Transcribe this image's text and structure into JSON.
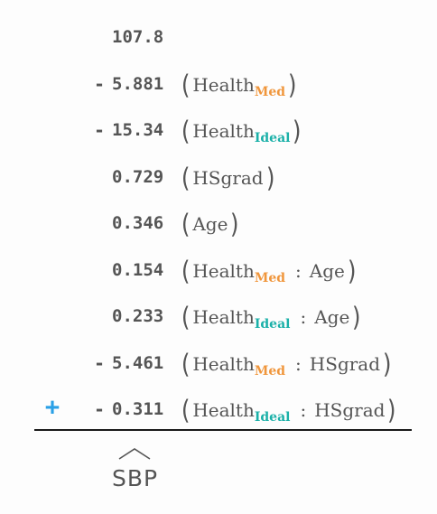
{
  "colors": {
    "text": "#555555",
    "med": "#f0963c",
    "ideal": "#1ab0a8",
    "plus": "#2aa0e6",
    "rule": "#1a1a1a"
  },
  "operator": "+",
  "terms": [
    {
      "sign": "",
      "coef": "107.8",
      "vars": []
    },
    {
      "sign": "-",
      "coef": "5.881",
      "vars": [
        {
          "base": "Health",
          "sub": "Med",
          "sub_color": "med"
        }
      ]
    },
    {
      "sign": "-",
      "coef": "15.34",
      "vars": [
        {
          "base": "Health",
          "sub": "Ideal",
          "sub_color": "ideal"
        }
      ]
    },
    {
      "sign": "",
      "coef": "0.729",
      "vars": [
        {
          "base": "HSgrad"
        }
      ]
    },
    {
      "sign": "",
      "coef": "0.346",
      "vars": [
        {
          "base": "Age"
        }
      ]
    },
    {
      "sign": "",
      "coef": "0.154",
      "vars": [
        {
          "base": "Health",
          "sub": "Med",
          "sub_color": "med"
        },
        {
          "base": "Age"
        }
      ]
    },
    {
      "sign": "",
      "coef": "0.233",
      "vars": [
        {
          "base": "Health",
          "sub": "Ideal",
          "sub_color": "ideal"
        },
        {
          "base": "Age"
        }
      ]
    },
    {
      "sign": "-",
      "coef": "5.461",
      "vars": [
        {
          "base": "Health",
          "sub": "Med",
          "sub_color": "med"
        },
        {
          "base": "HSgrad"
        }
      ]
    },
    {
      "sign": "-",
      "coef": "0.311",
      "vars": [
        {
          "base": "Health",
          "sub": "Ideal",
          "sub_color": "ideal"
        },
        {
          "base": "HSgrad"
        }
      ]
    }
  ],
  "interaction_symbol": ":",
  "open_paren": "(",
  "close_paren": ")",
  "result": "SBP"
}
